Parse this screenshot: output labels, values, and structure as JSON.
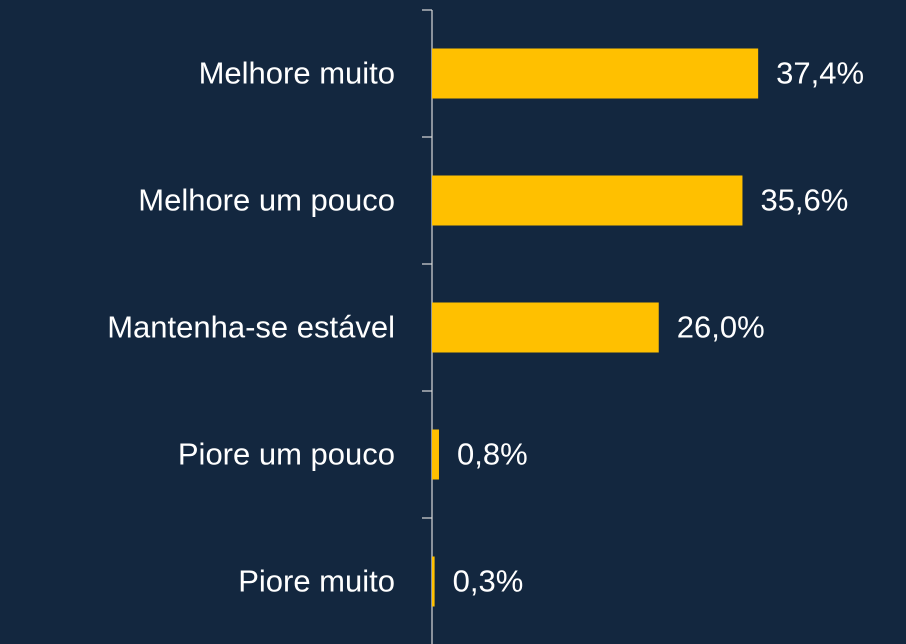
{
  "chart_data": {
    "type": "barh",
    "categories": [
      "Melhore muito",
      "Melhore um pouco",
      "Mantenha-se estável",
      "Piore um pouco",
      "Piore muito"
    ],
    "values": [
      37.4,
      35.6,
      26.0,
      0.8,
      0.3
    ],
    "value_labels": [
      "37,4%",
      "35,6%",
      "26,0%",
      "0,8%",
      "0,3%"
    ],
    "color": "#ffc000",
    "xlim": [
      0,
      43
    ]
  }
}
